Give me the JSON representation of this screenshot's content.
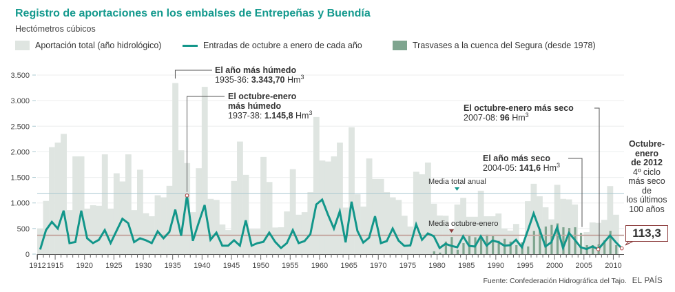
{
  "header": {
    "title": "Registro de aportaciones en los embalses de Entrepeñas y Buendía",
    "subtitle": "Hectómetros cúbicos"
  },
  "legend": {
    "items": [
      {
        "label": "Aportación total (año hidrológico)",
        "color": "#dfe5e1",
        "kind": "box"
      },
      {
        "label": "Entradas de octubre a enero de cada año",
        "color": "#12968a",
        "kind": "line"
      },
      {
        "label": "Trasvases a la cuenca del Segura (desde 1978)",
        "color": "#7fa58f",
        "kind": "box"
      }
    ]
  },
  "annotations": {
    "wettest_year_title": "El año más húmedo",
    "wettest_year_period": "1935-36: ",
    "wettest_year_value": "3.343,70",
    "wettest_oct_title_1": "El octubre-enero",
    "wettest_oct_title_2": "más húmedo",
    "wettest_oct_period": "1937-38: ",
    "wettest_oct_value": "1.145,8",
    "driest_oct_title": "El octubre-enero más seco",
    "driest_oct_period": "2007-08: ",
    "driest_oct_value": "96",
    "driest_year_title": "El año más seco",
    "driest_year_period": "2004-05: ",
    "driest_year_value": "141,6",
    "unit": "Hm",
    "unit_sup": "3",
    "media_anual_label": "Media total anual",
    "media_oct_label": "Media octubre-enero"
  },
  "side_note": {
    "bold_lines": [
      "Octubre-",
      "enero",
      "de 2012"
    ],
    "lines": [
      "4º ciclo",
      "más seco",
      "de",
      "los últimos",
      "100 años"
    ],
    "callout_value": "113,3"
  },
  "footer": {
    "source": "Fuente: Confederación Hidrográfica del Tajo.",
    "brand": "EL PAÍS"
  },
  "chart_data": {
    "type": "bar",
    "title": "Registro de aportaciones en los embalses de Entrepeñas y Buendía",
    "subtitle": "Hectómetros cúbicos",
    "xlabel": "",
    "ylabel": "Hectómetros cúbicos",
    "ylim": [
      0,
      3500
    ],
    "xlim": [
      1912,
      2012
    ],
    "yticks": [
      0,
      500,
      1000,
      1500,
      2000,
      2500,
      3000,
      3500
    ],
    "ytick_labels": [
      "0",
      "500",
      "1.000",
      "1.500",
      "2.000",
      "2.500",
      "3.000",
      "3.500"
    ],
    "xticks": [
      1912,
      1915,
      1920,
      1925,
      1930,
      1935,
      1940,
      1945,
      1950,
      1955,
      1960,
      1965,
      1970,
      1975,
      1980,
      1985,
      1990,
      1995,
      2000,
      2005,
      2010
    ],
    "grid": true,
    "legend_position": "top",
    "years": [
      1912,
      1913,
      1914,
      1915,
      1916,
      1917,
      1918,
      1919,
      1920,
      1921,
      1922,
      1923,
      1924,
      1925,
      1926,
      1927,
      1928,
      1929,
      1930,
      1931,
      1932,
      1933,
      1934,
      1935,
      1936,
      1937,
      1938,
      1939,
      1940,
      1941,
      1942,
      1943,
      1944,
      1945,
      1946,
      1947,
      1948,
      1949,
      1950,
      1951,
      1952,
      1953,
      1954,
      1955,
      1956,
      1957,
      1958,
      1959,
      1960,
      1961,
      1962,
      1963,
      1964,
      1965,
      1966,
      1967,
      1968,
      1969,
      1970,
      1971,
      1972,
      1973,
      1974,
      1975,
      1976,
      1977,
      1978,
      1979,
      1980,
      1981,
      1982,
      1983,
      1984,
      1985,
      1986,
      1987,
      1988,
      1989,
      1990,
      1991,
      1992,
      1993,
      1994,
      1995,
      1996,
      1997,
      1998,
      1999,
      2000,
      2001,
      2002,
      2003,
      2004,
      2005,
      2006,
      2007,
      2008,
      2009,
      2010,
      2011
    ],
    "series": [
      {
        "name": "Aportación total (año hidrológico)",
        "type": "bar",
        "color": "#dfe5e1",
        "values": [
          500,
          1040,
          2090,
          2180,
          2350,
          860,
          1910,
          1910,
          890,
          955,
          945,
          1950,
          890,
          1580,
          1420,
          1950,
          860,
          1650,
          800,
          740,
          1150,
          1110,
          1335,
          3343.7,
          2030,
          1780,
          820,
          1680,
          3270,
          1080,
          1060,
          580,
          470,
          1430,
          2200,
          1550,
          490,
          490,
          1900,
          1410,
          520,
          525,
          835,
          1660,
          770,
          820,
          1210,
          2680,
          1830,
          1810,
          1910,
          2180,
          910,
          2480,
          1170,
          930,
          1870,
          1470,
          1470,
          1210,
          1110,
          1060,
          750,
          540,
          1610,
          1560,
          1790,
          985,
          755,
          750,
          490,
          970,
          1100,
          730,
          730,
          1240,
          740,
          740,
          795,
          500,
          460,
          590,
          230,
          1035,
          1375,
          1130,
          915,
          680,
          1355,
          1080,
          1070,
          970,
          141.6,
          430,
          620,
          610,
          670,
          1330,
          770,
          null
        ]
      },
      {
        "name": "Entradas de octubre a enero de cada año",
        "type": "line",
        "color": "#12968a",
        "values": [
          90,
          470,
          630,
          500,
          850,
          215,
          235,
          850,
          310,
          215,
          280,
          470,
          215,
          455,
          690,
          605,
          235,
          310,
          270,
          215,
          445,
          310,
          435,
          870,
          360,
          1145.8,
          260,
          620,
          960,
          280,
          420,
          165,
          165,
          270,
          165,
          660,
          165,
          215,
          240,
          420,
          240,
          120,
          215,
          470,
          215,
          255,
          390,
          970,
          1065,
          770,
          500,
          835,
          230,
          1025,
          455,
          225,
          320,
          740,
          215,
          255,
          500,
          265,
          160,
          170,
          580,
          280,
          405,
          350,
          120,
          200,
          160,
          135,
          350,
          160,
          150,
          350,
          165,
          265,
          235,
          165,
          175,
          280,
          135,
          460,
          795,
          485,
          150,
          230,
          525,
          120,
          415,
          280,
          135,
          100,
          150,
          96,
          230,
          365,
          230,
          113.3
        ]
      },
      {
        "name": "Trasvases a la cuenca del Segura (desde 1978)",
        "type": "bar",
        "color": "#7fa58f",
        "values": [
          null,
          null,
          null,
          null,
          null,
          null,
          null,
          null,
          null,
          null,
          null,
          null,
          null,
          null,
          null,
          null,
          null,
          null,
          null,
          null,
          null,
          null,
          null,
          null,
          null,
          null,
          null,
          null,
          null,
          null,
          null,
          null,
          null,
          null,
          null,
          null,
          null,
          null,
          null,
          null,
          null,
          null,
          null,
          null,
          null,
          null,
          null,
          null,
          null,
          null,
          null,
          null,
          null,
          null,
          null,
          null,
          null,
          null,
          null,
          null,
          null,
          null,
          null,
          null,
          null,
          null,
          null,
          55,
          30,
          245,
          335,
          85,
          215,
          350,
          330,
          360,
          380,
          350,
          260,
          300,
          245,
          175,
          230,
          150,
          455,
          485,
          540,
          570,
          600,
          525,
          510,
          525,
          415,
          175,
          175,
          190,
          270,
          455,
          175,
          null
        ]
      }
    ],
    "reference_lines": [
      {
        "label": "Media total anual",
        "value": 1190,
        "color": "#a9c8d0"
      },
      {
        "label": "Media octubre-enero",
        "value": 367,
        "color": "#c4a6a0"
      }
    ],
    "highlights": [
      {
        "label": "El año más húmedo",
        "period": "1935-36",
        "value": 3343.7,
        "unit": "Hm3"
      },
      {
        "label": "El octubre-enero más húmedo",
        "period": "1937-38",
        "value": 1145.8,
        "unit": "Hm3"
      },
      {
        "label": "El octubre-enero más seco",
        "period": "2007-08",
        "value": 96,
        "unit": "Hm3"
      },
      {
        "label": "El año más seco",
        "period": "2004-05",
        "value": 141.6,
        "unit": "Hm3"
      },
      {
        "label": "Octubre-enero de 2012",
        "period": "2011-12",
        "value": 113.3,
        "note": "4º ciclo más seco de los últimos 100 años"
      }
    ]
  }
}
